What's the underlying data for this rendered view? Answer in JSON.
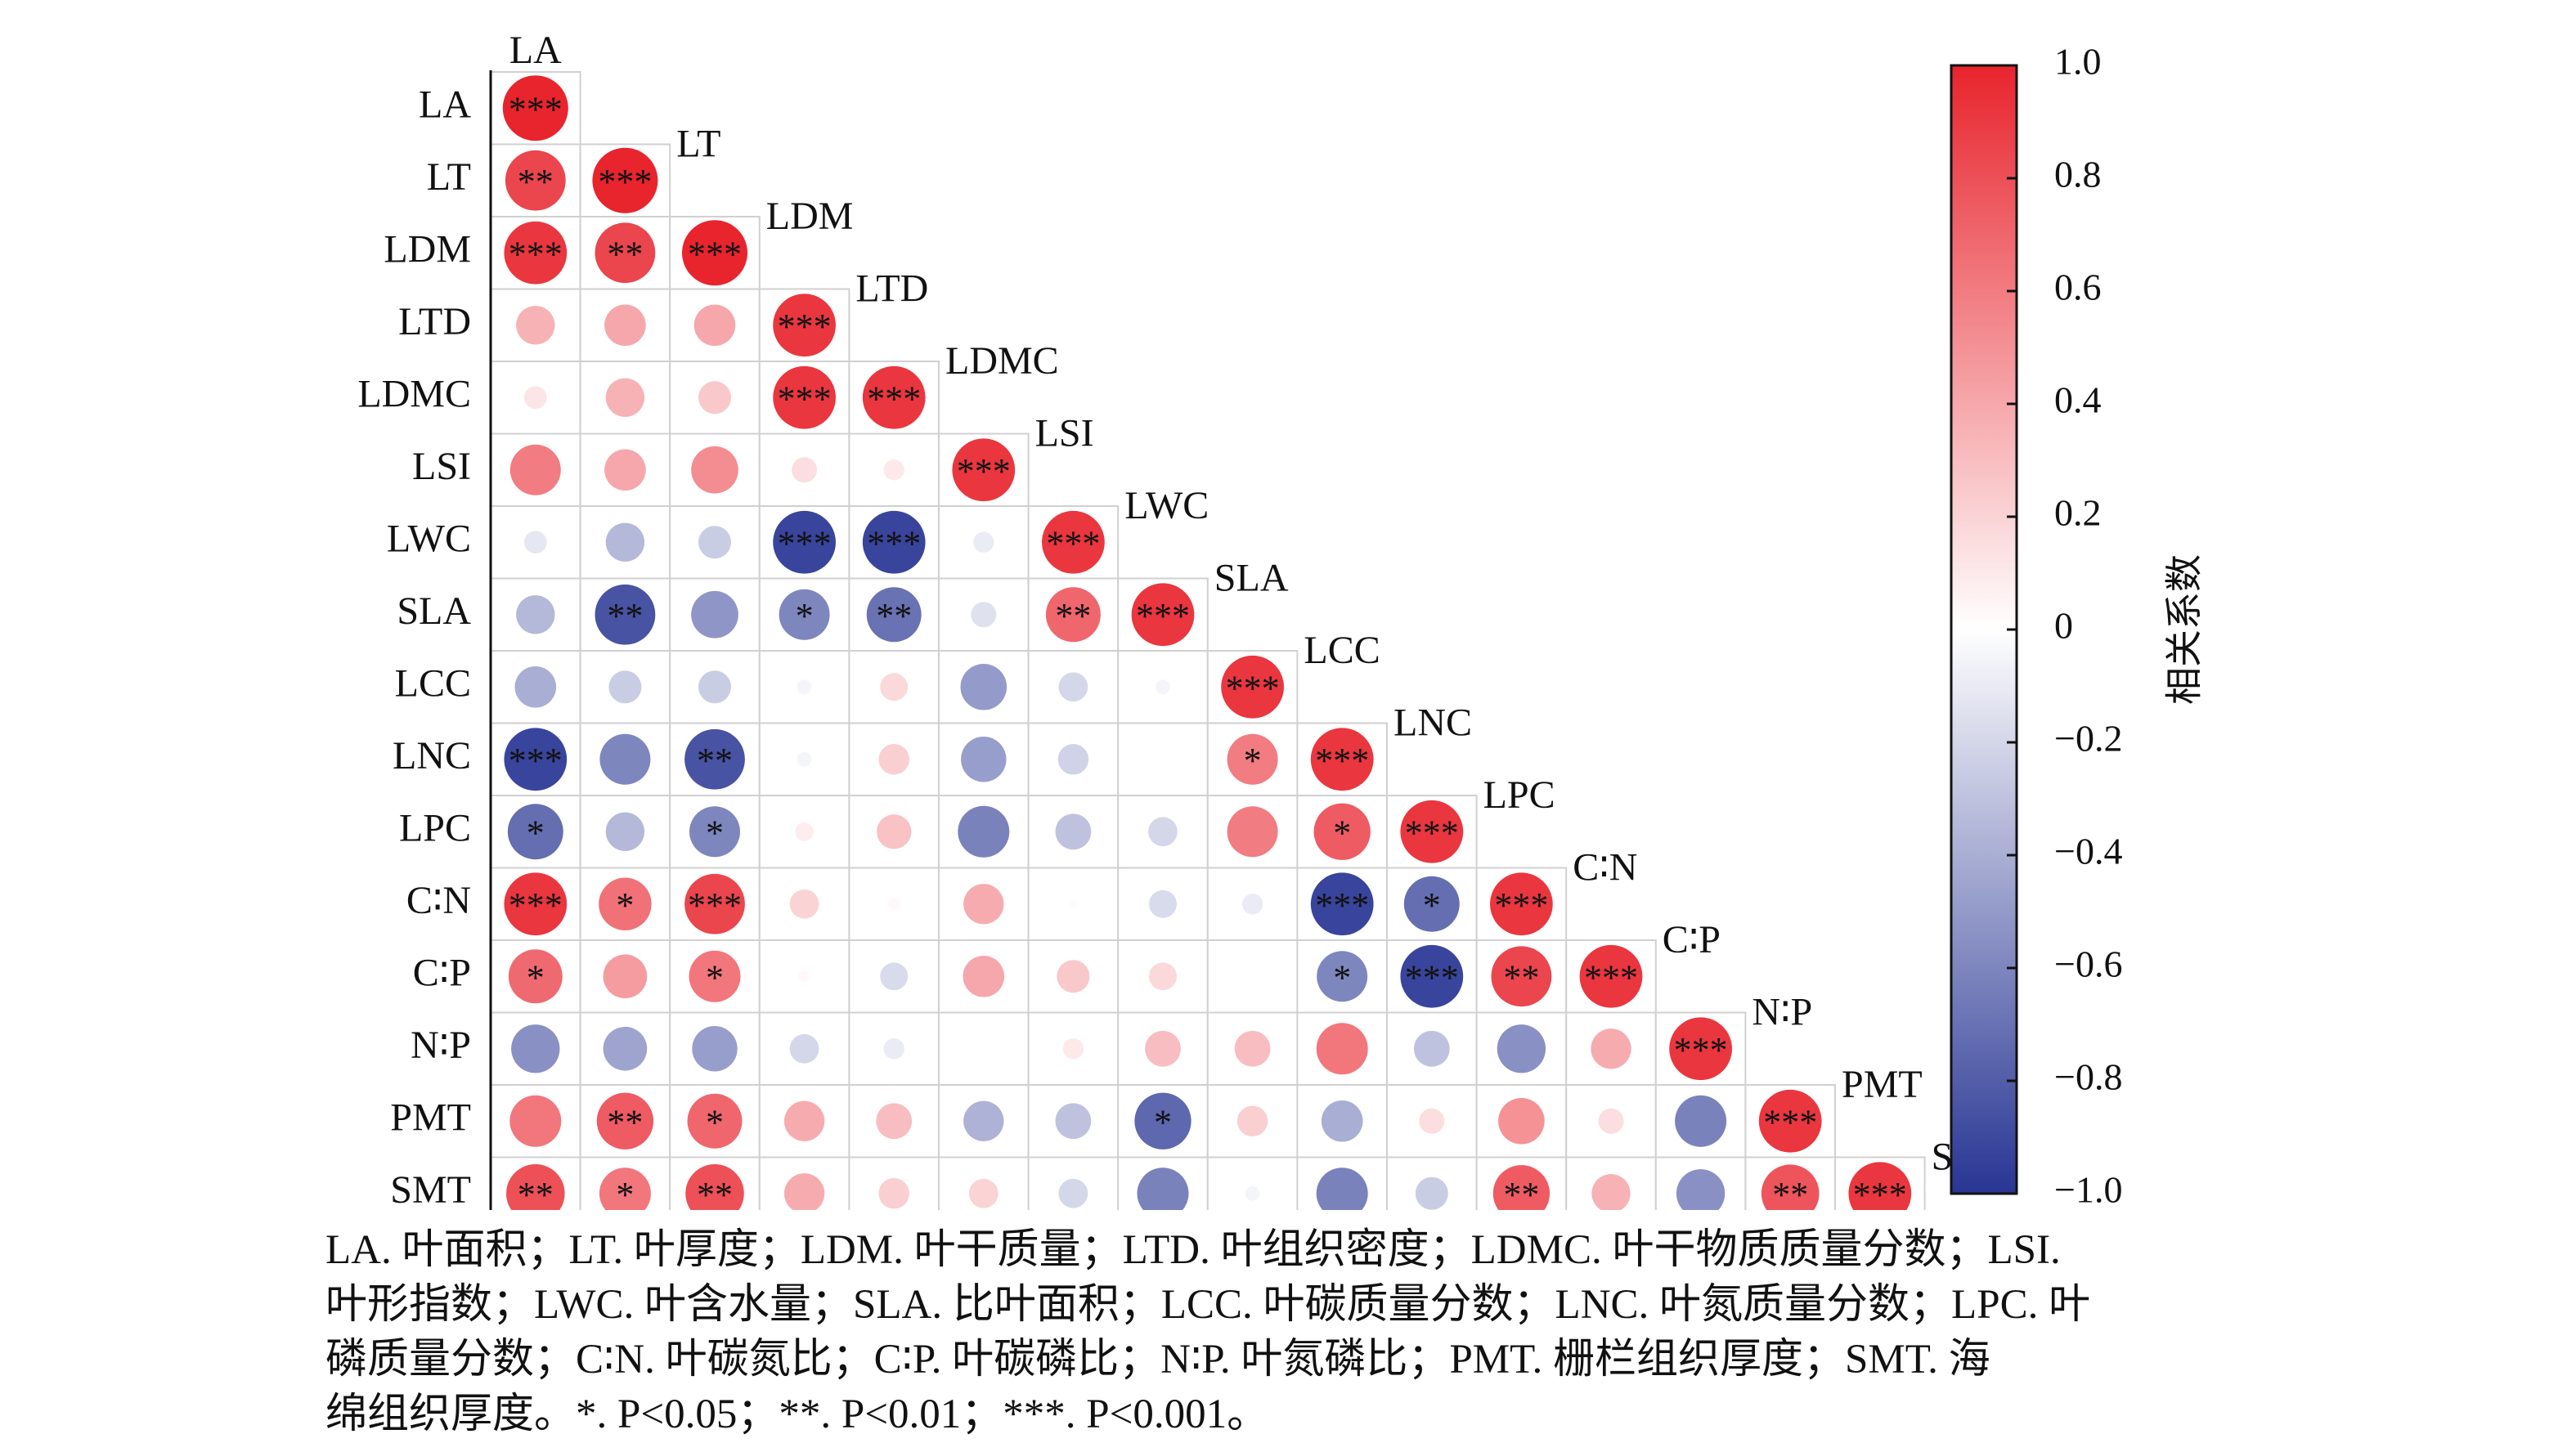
{
  "chart_data": {
    "type": "correlation-matrix",
    "variables": [
      "LA",
      "LT",
      "LDM",
      "LTD",
      "LDMC",
      "LSI",
      "LWC",
      "SLA",
      "LCC",
      "LNC",
      "LPC",
      "C∶N",
      "C∶P",
      "N∶P",
      "PMT",
      "SMT"
    ],
    "layout": "lower-triangle-with-diagonal",
    "matrix": [
      [
        1.0
      ],
      [
        0.85,
        1.0
      ],
      [
        0.92,
        0.85,
        1.0
      ],
      [
        0.35,
        0.4,
        0.4,
        0.92
      ],
      [
        0.12,
        0.35,
        0.25,
        0.92,
        0.92
      ],
      [
        0.6,
        0.4,
        0.52,
        0.15,
        0.1,
        0.92
      ],
      [
        -0.12,
        -0.35,
        -0.25,
        -0.92,
        -0.92,
        -0.1,
        0.92
      ],
      [
        -0.35,
        -0.85,
        -0.52,
        -0.6,
        -0.7,
        -0.15,
        0.7,
        0.92
      ],
      [
        -0.4,
        -0.25,
        -0.25,
        -0.05,
        0.18,
        -0.5,
        -0.2,
        -0.05,
        0.92
      ],
      [
        -0.92,
        -0.6,
        -0.85,
        -0.05,
        0.22,
        -0.48,
        -0.22,
        0.0,
        0.6,
        0.92
      ],
      [
        -0.72,
        -0.35,
        -0.6,
        0.08,
        0.28,
        -0.62,
        -0.3,
        -0.2,
        0.6,
        0.75,
        0.92
      ],
      [
        0.92,
        0.65,
        0.85,
        0.2,
        0.03,
        0.38,
        0.02,
        -0.18,
        -0.1,
        -0.92,
        -0.72,
        0.92
      ],
      [
        0.68,
        0.45,
        0.62,
        0.03,
        -0.18,
        0.4,
        0.25,
        0.18,
        0.0,
        -0.6,
        -0.92,
        0.85,
        0.92
      ],
      [
        -0.55,
        -0.45,
        -0.48,
        -0.2,
        -0.1,
        0.0,
        0.1,
        0.3,
        0.3,
        0.62,
        -0.3,
        -0.55,
        0.38,
        0.92
      ],
      [
        0.62,
        0.75,
        0.7,
        0.38,
        0.3,
        -0.38,
        -0.3,
        -0.75,
        0.22,
        -0.4,
        0.15,
        0.5,
        0.15,
        -0.62,
        0.92
      ],
      [
        0.8,
        0.62,
        0.8,
        0.38,
        0.22,
        0.2,
        -0.2,
        -0.62,
        -0.05,
        -0.62,
        -0.25,
        0.75,
        0.35,
        -0.55,
        0.78,
        0.92
      ]
    ],
    "stars": [
      [
        "***"
      ],
      [
        "**",
        "***"
      ],
      [
        "***",
        "**",
        "***"
      ],
      [
        "",
        "",
        "",
        "***"
      ],
      [
        "",
        "",
        "",
        "***",
        "***"
      ],
      [
        "",
        "",
        "",
        "",
        "",
        "***"
      ],
      [
        "",
        "",
        "",
        "***",
        "***",
        "",
        "***"
      ],
      [
        "",
        "**",
        "",
        "*",
        "**",
        "",
        "**",
        "***"
      ],
      [
        "",
        "",
        "",
        "",
        "",
        "",
        "",
        "",
        "***"
      ],
      [
        "***",
        "",
        "**",
        "",
        "",
        "",
        "",
        "",
        "*",
        "***"
      ],
      [
        "*",
        "",
        "*",
        "",
        "",
        "",
        "",
        "",
        "",
        "*",
        "***"
      ],
      [
        "***",
        "*",
        "***",
        "",
        "",
        "",
        "",
        "",
        "",
        "***",
        "*",
        "***"
      ],
      [
        "*",
        "",
        "*",
        "",
        "",
        "",
        "",
        "",
        "",
        "*",
        "***",
        "**",
        "***"
      ],
      [
        "",
        "",
        "",
        "",
        "",
        "",
        "",
        "",
        "",
        "",
        "",
        "",
        "",
        "***"
      ],
      [
        "",
        "**",
        "*",
        "",
        "",
        "",
        "",
        "*",
        "",
        "",
        "",
        "",
        "",
        "",
        "***"
      ],
      [
        "**",
        "*",
        "**",
        "",
        "",
        "",
        "",
        "",
        "",
        "",
        "",
        "**",
        "",
        "",
        "**",
        "***"
      ]
    ],
    "colorbar": {
      "title": "相关系数",
      "range": [
        -1.0,
        1.0
      ],
      "ticks": [
        "1.0",
        "0.8",
        "0.6",
        "0.4",
        "0.2",
        "0",
        "−0.2",
        "−0.4",
        "−0.6",
        "−0.8",
        "−1.0"
      ],
      "colors": {
        "negative": "#283593",
        "neutral": "#ffffff",
        "positive": "#e8242d"
      }
    }
  },
  "caption": [
    "LA. 叶面积；LT. 叶厚度；LDM. 叶干质量；LTD. 叶组织密度；LDMC. 叶干物质质量分数；LSI.",
    "叶形指数；LWC. 叶含水量；SLA. 比叶面积；LCC. 叶碳质量分数；LNC. 叶氮质量分数；LPC. 叶",
    "磷质量分数；C∶N. 叶碳氮比；C∶P. 叶碳磷比；N∶P. 叶氮磷比；PMT. 栅栏组织厚度；SMT. 海",
    "绵组织厚度。*. P<0.05；**. P<0.01；***. P<0.001。"
  ]
}
